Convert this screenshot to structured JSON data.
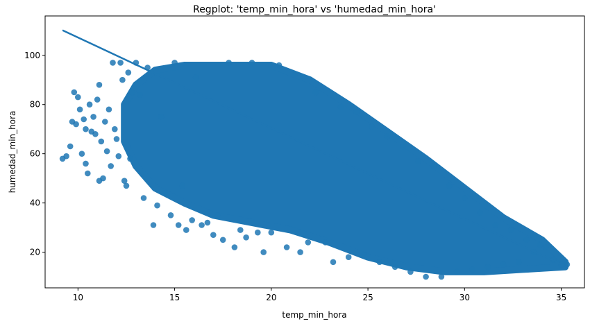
{
  "chart_data": {
    "type": "scatter",
    "title": "Regplot: 'temp_min_hora' vs 'humedad_min_hora'",
    "xlabel": "temp_min_hora",
    "ylabel": "humedad_min_hora",
    "xlim": [
      8.3,
      36.2
    ],
    "ylim": [
      5.5,
      116
    ],
    "xticks": [
      10,
      15,
      20,
      25,
      30,
      35
    ],
    "yticks": [
      20,
      40,
      60,
      80,
      100
    ],
    "grid": false,
    "legend": "none",
    "series": [
      {
        "color": "#1f77b4",
        "points": [
          [
            9.2,
            58
          ],
          [
            9.4,
            59
          ],
          [
            9.6,
            63
          ],
          [
            9.7,
            73
          ],
          [
            9.8,
            85
          ],
          [
            9.9,
            72
          ],
          [
            10.0,
            83
          ],
          [
            10.1,
            78
          ],
          [
            10.2,
            60
          ],
          [
            10.3,
            74
          ],
          [
            10.4,
            56
          ],
          [
            10.4,
            70
          ],
          [
            10.5,
            52
          ],
          [
            10.6,
            80
          ],
          [
            10.7,
            69
          ],
          [
            10.8,
            75
          ],
          [
            10.9,
            68
          ],
          [
            11.0,
            82
          ],
          [
            11.1,
            88
          ],
          [
            11.1,
            49
          ],
          [
            11.2,
            65
          ],
          [
            11.3,
            50
          ],
          [
            11.4,
            73
          ],
          [
            11.5,
            61
          ],
          [
            11.6,
            78
          ],
          [
            11.7,
            55
          ],
          [
            11.8,
            97
          ],
          [
            11.9,
            70
          ],
          [
            12.0,
            66
          ],
          [
            12.1,
            59
          ],
          [
            12.2,
            97
          ],
          [
            12.3,
            90
          ],
          [
            12.4,
            49
          ],
          [
            12.5,
            47
          ],
          [
            12.6,
            93
          ],
          [
            12.7,
            58
          ],
          [
            12.8,
            85
          ],
          [
            13.0,
            97
          ],
          [
            13.2,
            84
          ],
          [
            13.4,
            42
          ],
          [
            13.6,
            95
          ],
          [
            13.9,
            31
          ],
          [
            14.1,
            39
          ],
          [
            14.3,
            75
          ],
          [
            14.5,
            44
          ],
          [
            14.8,
            35
          ],
          [
            15.0,
            97
          ],
          [
            15.2,
            31
          ],
          [
            15.4,
            47
          ],
          [
            15.6,
            29
          ],
          [
            15.9,
            33
          ],
          [
            16.1,
            91
          ],
          [
            16.4,
            31
          ],
          [
            16.7,
            32
          ],
          [
            17.0,
            27
          ],
          [
            17.2,
            35
          ],
          [
            17.5,
            25
          ],
          [
            17.8,
            97
          ],
          [
            18.1,
            22
          ],
          [
            18.4,
            29
          ],
          [
            18.7,
            26
          ],
          [
            19.0,
            97
          ],
          [
            19.3,
            28
          ],
          [
            19.6,
            20
          ],
          [
            20.0,
            28
          ],
          [
            20.4,
            96
          ],
          [
            20.8,
            22
          ],
          [
            21.2,
            92
          ],
          [
            21.5,
            20
          ],
          [
            21.9,
            24
          ],
          [
            22.3,
            85
          ],
          [
            22.8,
            24
          ],
          [
            23.2,
            16
          ],
          [
            23.6,
            79
          ],
          [
            24.0,
            18
          ],
          [
            24.4,
            77
          ],
          [
            24.8,
            19
          ],
          [
            25.2,
            71
          ],
          [
            25.6,
            16
          ],
          [
            26.0,
            67
          ],
          [
            26.4,
            14
          ],
          [
            26.8,
            63
          ],
          [
            27.2,
            12
          ],
          [
            27.6,
            57
          ],
          [
            28.0,
            10
          ],
          [
            28.4,
            55
          ],
          [
            28.8,
            10
          ],
          [
            29.2,
            47
          ],
          [
            29.6,
            12
          ],
          [
            30.0,
            42
          ],
          [
            30.4,
            13
          ],
          [
            30.8,
            36
          ],
          [
            31.2,
            14
          ],
          [
            31.6,
            31
          ],
          [
            32.0,
            15
          ],
          [
            32.4,
            29
          ],
          [
            32.8,
            16
          ],
          [
            33.2,
            25
          ],
          [
            33.6,
            20
          ],
          [
            33.9,
            23
          ],
          [
            34.2,
            22
          ],
          [
            34.6,
            17
          ],
          [
            35.0,
            15
          ],
          [
            35.3,
            15
          ]
        ],
        "dense_region": {
          "upper": [
            [
              12.4,
              80
            ],
            [
              13.0,
              88
            ],
            [
              14.0,
              94
            ],
            [
              15.5,
              96
            ],
            [
              18.0,
              96
            ],
            [
              20.0,
              96
            ],
            [
              22.0,
              90
            ],
            [
              24.0,
              80
            ],
            [
              26.0,
              69
            ],
            [
              28.0,
              58
            ],
            [
              30.0,
              46
            ],
            [
              32.0,
              34
            ],
            [
              34.0,
              25
            ],
            [
              35.2,
              16
            ]
          ],
          "lower": [
            [
              35.2,
              14
            ],
            [
              33.0,
              13
            ],
            [
              31.0,
              12
            ],
            [
              29.0,
              12
            ],
            [
              27.0,
              14
            ],
            [
              25.0,
              18
            ],
            [
              23.0,
              24
            ],
            [
              21.0,
              29
            ],
            [
              19.0,
              32
            ],
            [
              17.0,
              35
            ],
            [
              15.5,
              40
            ],
            [
              14.0,
              46
            ],
            [
              13.0,
              55
            ],
            [
              12.4,
              65
            ]
          ]
        }
      }
    ],
    "regression_line": {
      "x": [
        9.2,
        35.3
      ],
      "y": [
        110.2,
        14.0
      ],
      "color": "#1f77b4"
    }
  }
}
